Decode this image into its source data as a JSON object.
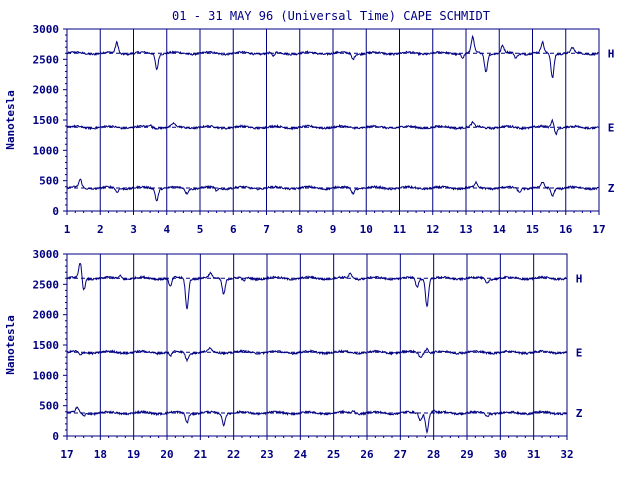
{
  "chart_data": [
    {
      "type": "line",
      "title": "01 - 31 MAY 96 (Universal Time) CAPE SCHMIDT",
      "xlabel": "",
      "ylabel": "Nanotesla",
      "xlim": [
        1,
        17
      ],
      "ylim": [
        0,
        3000
      ],
      "x_ticks": [
        "1",
        "2",
        "3",
        "4",
        "5",
        "6",
        "7",
        "8",
        "9",
        "10",
        "11",
        "12",
        "13",
        "14",
        "15",
        "16",
        "17"
      ],
      "y_ticks": [
        "0",
        "500",
        "1000",
        "1500",
        "2000",
        "2500",
        "3000"
      ],
      "grid": "vertical lines at each day",
      "dashed_baselines": [
        2600,
        1380,
        380
      ],
      "series": [
        {
          "name": "H",
          "baseline": 2600,
          "events": [
            [
              2.5,
              180
            ],
            [
              3.7,
              -250
            ],
            [
              7.2,
              -60
            ],
            [
              9.6,
              -90
            ],
            [
              12.9,
              -60
            ],
            [
              13.2,
              250
            ],
            [
              13.6,
              -300
            ],
            [
              14.1,
              120
            ],
            [
              14.5,
              -80
            ],
            [
              15.3,
              170
            ],
            [
              15.6,
              -400
            ],
            [
              16.2,
              80
            ]
          ]
        },
        {
          "name": "E",
          "baseline": 1380,
          "events": [
            [
              3.5,
              40
            ],
            [
              4.2,
              50
            ],
            [
              13.2,
              60
            ],
            [
              15.6,
              130
            ],
            [
              15.7,
              -100
            ]
          ]
        },
        {
          "name": "Z",
          "baseline": 380,
          "events": [
            [
              1.4,
              130
            ],
            [
              2.5,
              -70
            ],
            [
              3.7,
              -200
            ],
            [
              4.6,
              -80
            ],
            [
              5.5,
              -50
            ],
            [
              9.6,
              -80
            ],
            [
              13.3,
              80
            ],
            [
              14.6,
              -60
            ],
            [
              15.3,
              80
            ],
            [
              15.6,
              -120
            ]
          ]
        }
      ]
    },
    {
      "type": "line",
      "title": "",
      "xlabel": "",
      "ylabel": "Nanotesla",
      "xlim": [
        17,
        32
      ],
      "ylim": [
        0,
        3000
      ],
      "x_ticks": [
        "17",
        "18",
        "19",
        "20",
        "21",
        "22",
        "23",
        "24",
        "25",
        "26",
        "27",
        "28",
        "29",
        "30",
        "31",
        "32"
      ],
      "y_ticks": [
        "0",
        "500",
        "1000",
        "1500",
        "2000",
        "2500",
        "3000"
      ],
      "grid": "vertical lines at each day",
      "dashed_baselines": [
        2600,
        1380,
        380
      ],
      "series": [
        {
          "name": "H",
          "baseline": 2600,
          "events": [
            [
              17.4,
              250
            ],
            [
              17.5,
              -200
            ],
            [
              18.6,
              50
            ],
            [
              20.1,
              -150
            ],
            [
              20.6,
              -500
            ],
            [
              21.3,
              70
            ],
            [
              21.7,
              -250
            ],
            [
              22.3,
              -60
            ],
            [
              25.5,
              80
            ],
            [
              27.5,
              -150
            ],
            [
              27.8,
              -450
            ],
            [
              29.6,
              -80
            ]
          ]
        },
        {
          "name": "E",
          "baseline": 1380,
          "events": [
            [
              17.4,
              -60
            ],
            [
              20.1,
              -70
            ],
            [
              20.6,
              -120
            ],
            [
              21.3,
              60
            ],
            [
              27.6,
              -80
            ],
            [
              27.8,
              70
            ]
          ]
        },
        {
          "name": "Z",
          "baseline": 380,
          "events": [
            [
              17.3,
              80
            ],
            [
              17.5,
              -50
            ],
            [
              20.6,
              -150
            ],
            [
              21.7,
              -180
            ],
            [
              25.6,
              50
            ],
            [
              27.6,
              -120
            ],
            [
              27.8,
              -300
            ],
            [
              28.0,
              50
            ],
            [
              29.6,
              -50
            ]
          ]
        }
      ]
    }
  ]
}
